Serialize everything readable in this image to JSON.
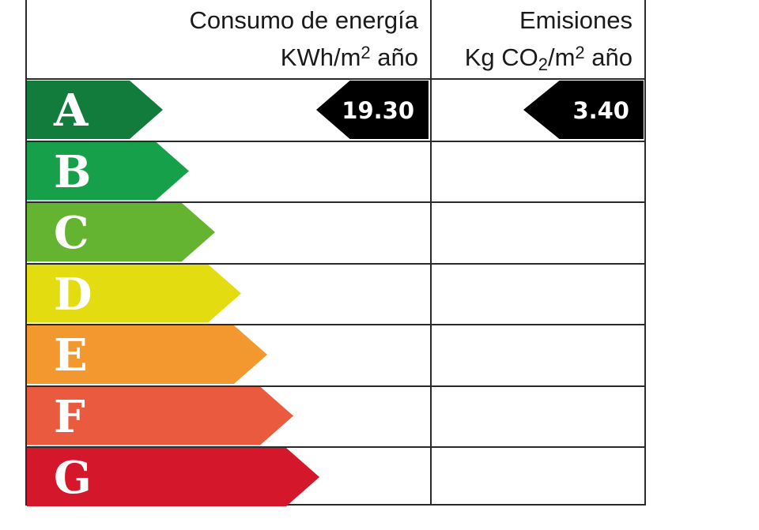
{
  "header": {
    "energy_line1": "Consumo de energía",
    "energy_unit_pre": "KWh/m",
    "energy_unit_sup": "2",
    "energy_unit_post": " año",
    "emissions_line1": "Emisiones",
    "emissions_unit_pre": "Kg CO",
    "emissions_unit_sub": "2",
    "emissions_unit_mid": "/m",
    "emissions_unit_sup": "2",
    "emissions_unit_post": " año"
  },
  "chart_data": {
    "type": "table",
    "classes": [
      "A",
      "B",
      "C",
      "D",
      "E",
      "F",
      "G"
    ],
    "class_colors": [
      "#127c3c",
      "#16a04a",
      "#64b331",
      "#e3dc10",
      "#f2982f",
      "#e95a3e",
      "#d4172a"
    ],
    "energy_consumption": {
      "class": "A",
      "value": "19.30"
    },
    "emissions": {
      "class": "A",
      "value": "3.40"
    }
  }
}
